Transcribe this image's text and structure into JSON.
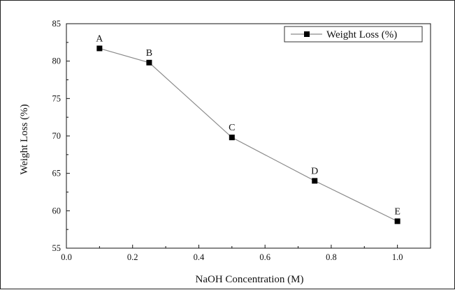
{
  "chart_data": {
    "type": "line",
    "xlabel": "NaOH Concentration (M)",
    "ylabel": "Weight Loss (%)",
    "xlim": [
      0.0,
      1.1
    ],
    "ylim": [
      55,
      85
    ],
    "x_ticks": [
      "0.0",
      "0.2",
      "0.4",
      "0.6",
      "0.8",
      "1.0"
    ],
    "y_ticks": [
      "55",
      "60",
      "65",
      "70",
      "75",
      "80",
      "85"
    ],
    "legend_position": "top-right",
    "grid": false,
    "series": [
      {
        "name": "Weight Loss (%)",
        "color": "#000000",
        "line_color": "#8a8a8a",
        "marker": "square",
        "x": [
          0.1,
          0.25,
          0.5,
          0.75,
          1.0
        ],
        "y": [
          81.7,
          79.8,
          69.8,
          64.0,
          58.6
        ],
        "point_labels": [
          "A",
          "B",
          "C",
          "D",
          "E"
        ]
      }
    ]
  }
}
